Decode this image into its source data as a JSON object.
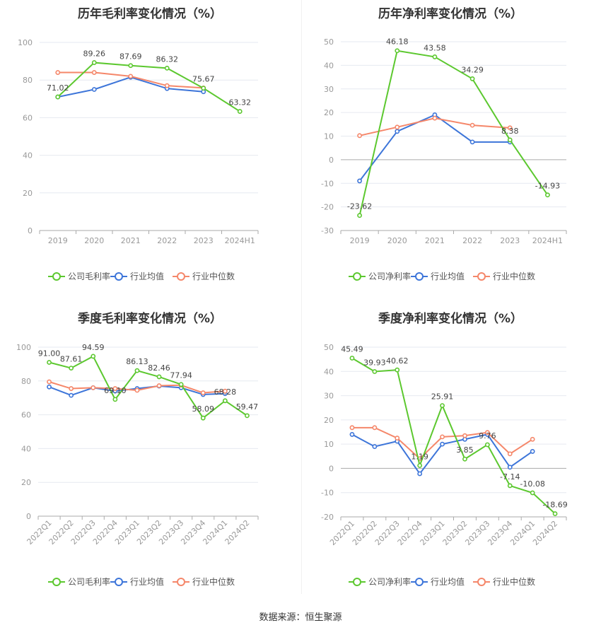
{
  "source": "数据来源：恒生聚源",
  "colors": {
    "company": "#5cc82f",
    "industry_avg": "#3d75d9",
    "industry_median": "#f5876a"
  },
  "chart_data": [
    {
      "type": "line",
      "title": "历年毛利率变化情况（%）",
      "categories": [
        "2019",
        "2020",
        "2021",
        "2022",
        "2023",
        "2024H1"
      ],
      "ylim": [
        0,
        100
      ],
      "yticks": [
        0,
        20,
        40,
        60,
        80,
        100
      ],
      "rotate_labels": false,
      "series": [
        {
          "name": "公司毛利率",
          "color": "#5cc82f",
          "labeled": true,
          "values": [
            71.02,
            89.26,
            87.69,
            86.32,
            75.67,
            63.32
          ]
        },
        {
          "name": "行业均值",
          "color": "#3d75d9",
          "labeled": false,
          "values": [
            71.0,
            75.0,
            81.5,
            75.5,
            73.8,
            null
          ]
        },
        {
          "name": "行业中位数",
          "color": "#f5876a",
          "labeled": false,
          "values": [
            84.0,
            84.0,
            82.0,
            77.0,
            75.8,
            null
          ]
        }
      ]
    },
    {
      "type": "line",
      "title": "历年净利率变化情况（%）",
      "categories": [
        "2019",
        "2020",
        "2021",
        "2022",
        "2023",
        "2024H1"
      ],
      "ylim": [
        -30,
        50
      ],
      "yticks": [
        -30,
        -20,
        -10,
        0,
        10,
        20,
        30,
        40,
        50
      ],
      "rotate_labels": false,
      "series": [
        {
          "name": "公司净利率",
          "color": "#5cc82f",
          "labeled": true,
          "values": [
            -23.62,
            46.18,
            43.58,
            34.29,
            8.38,
            -14.93
          ]
        },
        {
          "name": "行业均值",
          "color": "#3d75d9",
          "labeled": false,
          "values": [
            -9.0,
            12.0,
            19.0,
            7.5,
            7.5,
            null
          ]
        },
        {
          "name": "行业中位数",
          "color": "#f5876a",
          "labeled": false,
          "values": [
            10.2,
            13.8,
            17.6,
            14.6,
            13.5,
            null
          ]
        }
      ]
    },
    {
      "type": "line",
      "title": "季度毛利率变化情况（%）",
      "categories": [
        "2022Q1",
        "2022Q2",
        "2022Q3",
        "2022Q4",
        "2023Q1",
        "2023Q2",
        "2023Q3",
        "2023Q4",
        "2024Q1",
        "2024Q2"
      ],
      "ylim": [
        0,
        100
      ],
      "yticks": [
        0,
        20,
        40,
        60,
        80,
        100
      ],
      "rotate_labels": true,
      "series": [
        {
          "name": "公司毛利率",
          "color": "#5cc82f",
          "labeled": true,
          "values": [
            91.0,
            87.61,
            94.59,
            69.1,
            86.13,
            82.46,
            77.94,
            58.09,
            68.28,
            59.47
          ],
          "labels": [
            "91.00",
            "87.61",
            "94.59",
            "69.10",
            "86.13",
            "82.46",
            "77.94",
            "58.09",
            "68.28",
            "59.47"
          ]
        },
        {
          "name": "行业均值",
          "color": "#3d75d9",
          "labeled": false,
          "values": [
            76.5,
            71.5,
            76.0,
            74.0,
            75.5,
            77.0,
            76.0,
            72.0,
            72.5,
            null
          ]
        },
        {
          "name": "行业中位数",
          "color": "#f5876a",
          "labeled": false,
          "values": [
            79.5,
            75.5,
            76.0,
            75.5,
            74.5,
            77.2,
            77.5,
            73.0,
            74.0,
            null
          ]
        }
      ]
    },
    {
      "type": "line",
      "title": "季度净利率变化情况（%）",
      "categories": [
        "2022Q1",
        "2022Q2",
        "2022Q3",
        "2022Q4",
        "2023Q1",
        "2023Q2",
        "2023Q3",
        "2023Q4",
        "2024Q1",
        "2024Q2"
      ],
      "ylim": [
        -20,
        50
      ],
      "yticks": [
        -20,
        -10,
        0,
        10,
        20,
        30,
        40,
        50
      ],
      "rotate_labels": true,
      "series": [
        {
          "name": "公司净利率",
          "color": "#5cc82f",
          "labeled": true,
          "values": [
            45.49,
            39.93,
            40.62,
            1.19,
            25.91,
            3.85,
            9.76,
            -7.14,
            -10.08,
            -18.69
          ]
        },
        {
          "name": "行业均值",
          "color": "#3d75d9",
          "labeled": false,
          "values": [
            14.0,
            9.0,
            11.2,
            -2.2,
            10.0,
            12.0,
            14.0,
            0.5,
            7.0,
            null
          ]
        },
        {
          "name": "行业中位数",
          "color": "#f5876a",
          "labeled": false,
          "values": [
            16.8,
            16.8,
            12.5,
            4.0,
            13.0,
            13.5,
            14.8,
            6.0,
            12.0,
            null
          ]
        }
      ]
    }
  ]
}
